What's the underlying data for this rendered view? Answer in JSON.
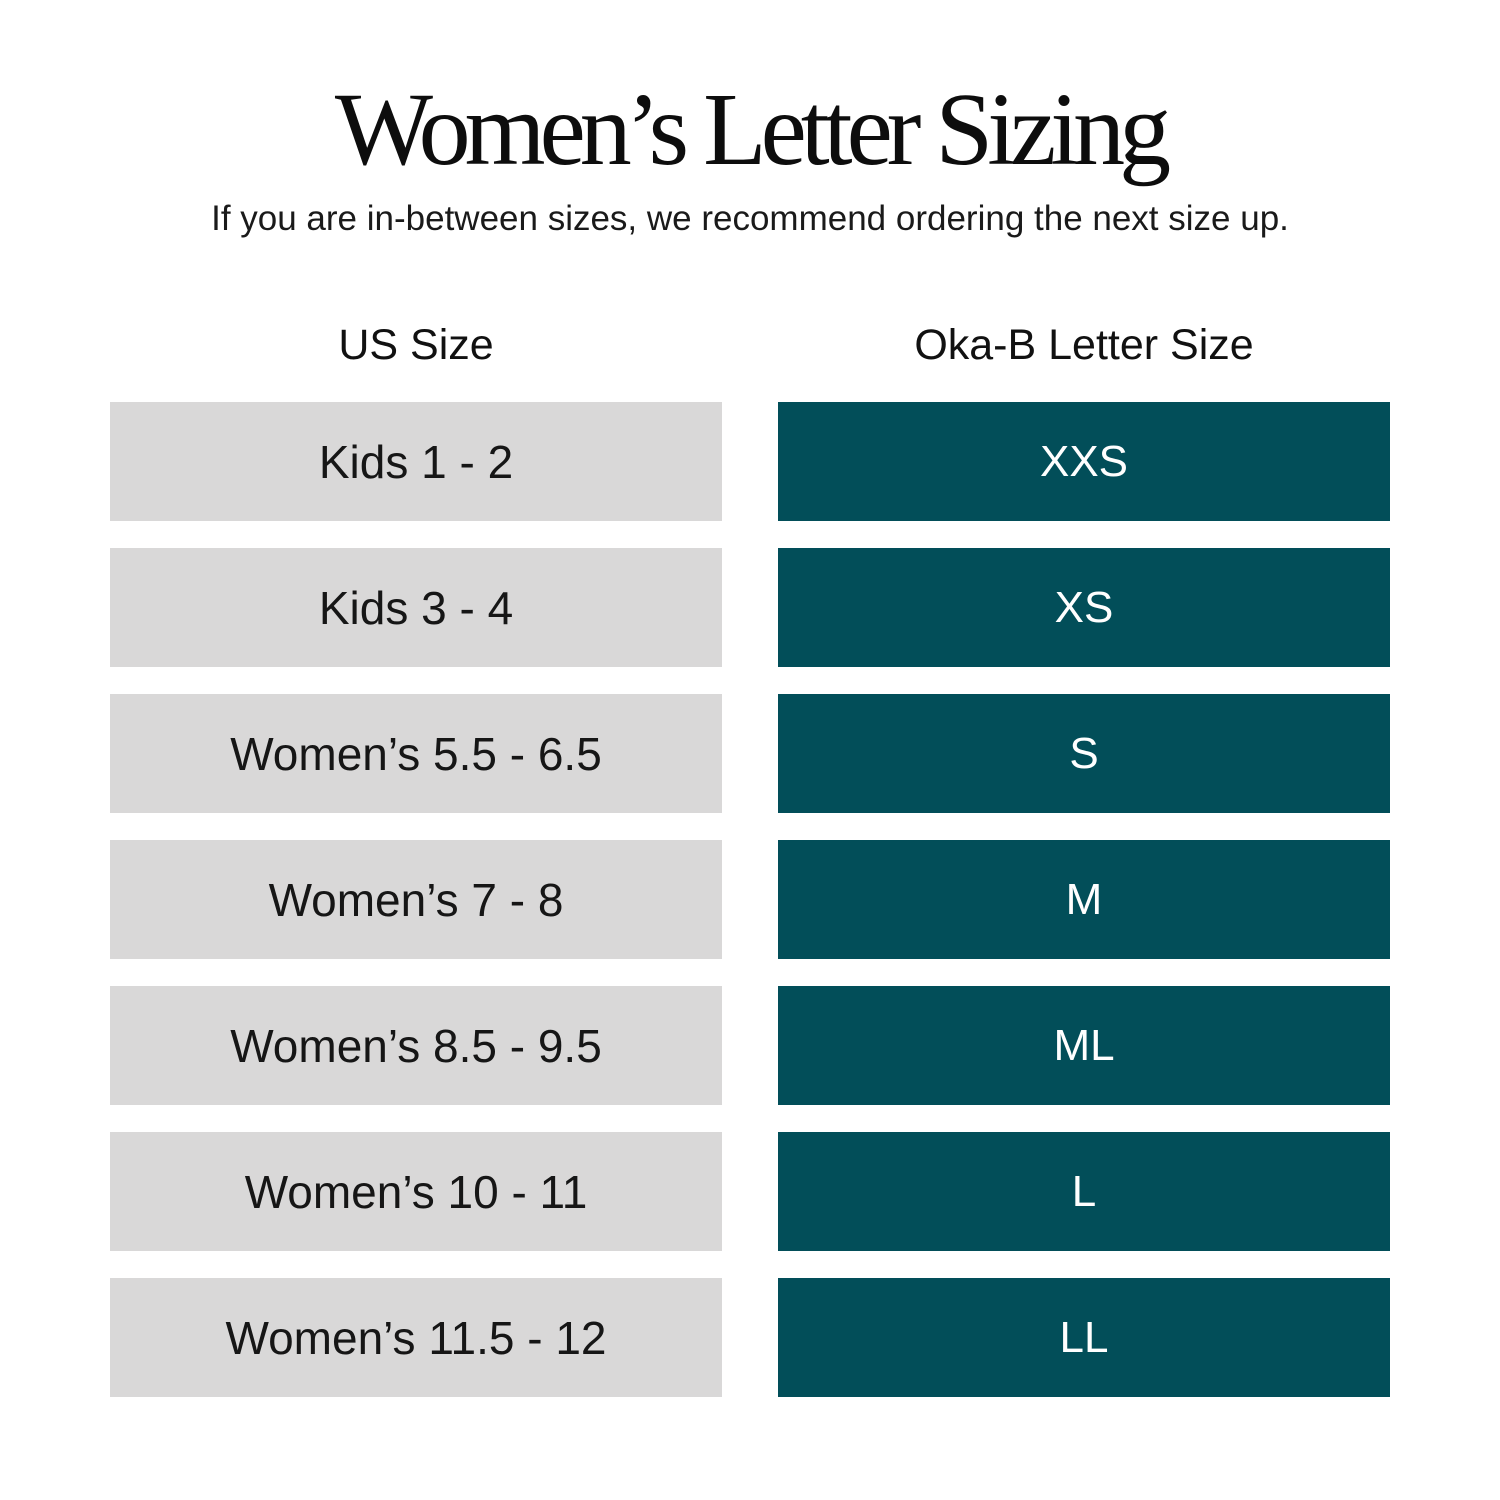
{
  "page": {
    "title": "Women’s Letter Sizing",
    "subtitle": "If you are in-between sizes, we recommend ordering the next size up."
  },
  "table": {
    "columns": [
      {
        "label": "US Size"
      },
      {
        "label": "Oka-B Letter Size"
      }
    ],
    "rows": [
      {
        "us": "Kids 1 - 2",
        "letter": "XXS"
      },
      {
        "us": "Kids 3 - 4",
        "letter": "XS"
      },
      {
        "us": "Women’s 5.5 - 6.5",
        "letter": "S"
      },
      {
        "us": "Women’s 7 - 8",
        "letter": "M"
      },
      {
        "us": "Women’s 8.5 - 9.5",
        "letter": "ML"
      },
      {
        "us": "Women’s 10 - 11",
        "letter": "L"
      },
      {
        "us": "Women’s 11.5 - 12",
        "letter": "LL"
      }
    ]
  },
  "colors": {
    "teal": "#024E59",
    "row_gray": "#D9D8D8",
    "text_dark": "#141414",
    "text_on_teal": "#FFFFFF",
    "background": "#FFFFFF"
  },
  "chart_data": {
    "type": "table",
    "title": "Women’s Letter Sizing",
    "subtitle": "If you are in-between sizes, we recommend ordering the next size up.",
    "columns": [
      "US Size",
      "Oka-B Letter Size"
    ],
    "rows": [
      [
        "Kids 1 - 2",
        "XXS"
      ],
      [
        "Kids 3 - 4",
        "XS"
      ],
      [
        "Women’s 5.5 - 6.5",
        "S"
      ],
      [
        "Women’s 7 - 8",
        "M"
      ],
      [
        "Women’s 8.5 - 9.5",
        "ML"
      ],
      [
        "Women’s 10 - 11",
        "L"
      ],
      [
        "Women’s 11.5 - 12",
        "LL"
      ]
    ],
    "layout": {
      "header_outside_cells": true,
      "row_fill_left": "#D9D8D8",
      "row_fill_right": "#024E59"
    }
  }
}
